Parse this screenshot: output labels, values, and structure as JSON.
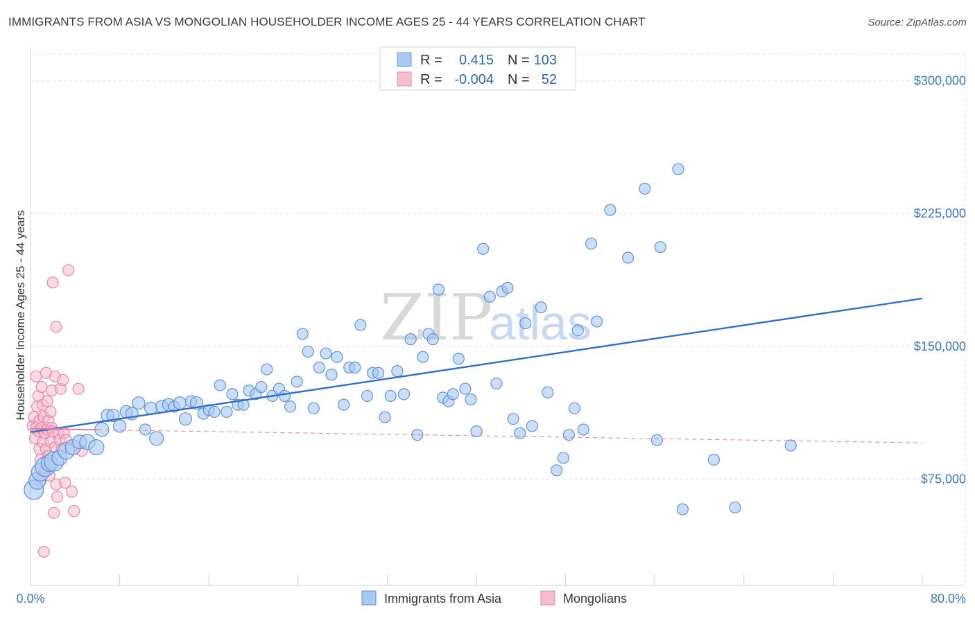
{
  "header": {
    "title": "IMMIGRANTS FROM ASIA VS MONGOLIAN HOUSEHOLDER INCOME AGES 25 - 44 YEARS CORRELATION CHART",
    "source": "Source: ZipAtlas.com"
  },
  "watermark": {
    "zip": "ZIP",
    "atlas": "atlas"
  },
  "legend": {
    "rows": [
      {
        "r_label": "R =",
        "r_value": "0.415",
        "n_label": "N =",
        "n_value": "103",
        "color": "#a9c8f2",
        "stroke": "#6d9fe0"
      },
      {
        "r_label": "R =",
        "r_value": "-0.004",
        "n_label": "N =",
        "n_value": "52",
        "color": "#f6bcd0",
        "stroke": "#e98aaa"
      }
    ]
  },
  "colors": {
    "asia_fill": "#a9c8f2",
    "asia_stroke": "#5f92d8",
    "asia_line": "#2f6fcf",
    "mongol_fill": "#f6bcd0",
    "mongol_stroke": "#e886a8",
    "mongol_line": "#e87aa0",
    "grid": "#e2e2e2",
    "axis_text": "#3f77c4"
  },
  "chart_data": {
    "type": "scatter",
    "title": "IMMIGRANTS FROM ASIA VS MONGOLIAN HOUSEHOLDER INCOME AGES 25 - 44 YEARS CORRELATION CHART",
    "xlabel": "",
    "ylabel": "Householder Income Ages 25 - 44 years",
    "xlim": [
      0,
      80
    ],
    "ylim": [
      15000,
      315000
    ],
    "x_tick_labels": [
      "0.0%",
      "80.0%"
    ],
    "y_ticks": [
      75000,
      150000,
      225000,
      300000
    ],
    "y_tick_labels": [
      "$75,000",
      "$150,000",
      "$225,000",
      "$300,000"
    ],
    "grid": true,
    "legend_position": "bottom-center",
    "series": [
      {
        "name": "Immigrants from Asia",
        "R": 0.415,
        "N": 103,
        "trend": [
          [
            0,
            101500
          ],
          [
            80,
            177000
          ]
        ],
        "points": [
          [
            0.3,
            69000,
            14
          ],
          [
            0.6,
            74000,
            12
          ],
          [
            0.9,
            79000,
            13
          ],
          [
            1.3,
            82000,
            14
          ],
          [
            1.7,
            84000,
            12
          ],
          [
            2.1,
            85000,
            14
          ],
          [
            2.6,
            87000,
            11
          ],
          [
            3.2,
            91000,
            12
          ],
          [
            3.8,
            93000,
            11
          ],
          [
            4.4,
            96000,
            10
          ],
          [
            5.1,
            96000,
            11
          ],
          [
            5.9,
            93000,
            11
          ],
          [
            6.4,
            103000,
            10
          ],
          [
            6.9,
            111000,
            9
          ],
          [
            7.4,
            111000,
            9
          ],
          [
            8.0,
            105000,
            9
          ],
          [
            8.6,
            113000,
            9
          ],
          [
            9.1,
            112000,
            9
          ],
          [
            9.7,
            118000,
            9
          ],
          [
            10.3,
            103000,
            8
          ],
          [
            10.8,
            115000,
            9
          ],
          [
            11.3,
            98000,
            10
          ],
          [
            11.8,
            116000,
            9
          ],
          [
            12.4,
            117000,
            9
          ],
          [
            12.9,
            116000,
            8
          ],
          [
            13.4,
            118000,
            9
          ],
          [
            13.9,
            109000,
            9
          ],
          [
            14.4,
            119000,
            8
          ],
          [
            14.9,
            118000,
            9
          ],
          [
            15.5,
            112000,
            8
          ],
          [
            16.0,
            114000,
            8
          ],
          [
            16.5,
            113000,
            8
          ],
          [
            17.0,
            128000,
            8
          ],
          [
            17.6,
            113000,
            8
          ],
          [
            18.1,
            123000,
            8
          ],
          [
            18.6,
            117000,
            8
          ],
          [
            19.1,
            117000,
            8
          ],
          [
            19.6,
            125000,
            8
          ],
          [
            20.2,
            123000,
            8
          ],
          [
            20.7,
            127000,
            8
          ],
          [
            21.2,
            137000,
            8
          ],
          [
            21.7,
            122000,
            8
          ],
          [
            22.3,
            126000,
            8
          ],
          [
            22.8,
            122000,
            8
          ],
          [
            23.3,
            116000,
            8
          ],
          [
            23.9,
            130000,
            8
          ],
          [
            24.4,
            157000,
            8
          ],
          [
            24.9,
            147000,
            8
          ],
          [
            25.4,
            115000,
            8
          ],
          [
            25.9,
            138000,
            8
          ],
          [
            26.5,
            146000,
            8
          ],
          [
            27.0,
            134000,
            8
          ],
          [
            27.5,
            144000,
            8
          ],
          [
            28.1,
            117000,
            8
          ],
          [
            28.6,
            138000,
            8
          ],
          [
            29.1,
            138000,
            8
          ],
          [
            29.6,
            162000,
            8
          ],
          [
            30.2,
            122000,
            8
          ],
          [
            30.7,
            135000,
            8
          ],
          [
            31.2,
            135000,
            8
          ],
          [
            31.8,
            110000,
            8
          ],
          [
            32.3,
            122000,
            8
          ],
          [
            32.9,
            136000,
            8
          ],
          [
            33.5,
            123000,
            8
          ],
          [
            34.1,
            154000,
            8
          ],
          [
            34.7,
            100000,
            8
          ],
          [
            35.2,
            144000,
            8
          ],
          [
            35.7,
            157000,
            8
          ],
          [
            36.1,
            154000,
            8
          ],
          [
            36.6,
            182000,
            8
          ],
          [
            37.0,
            121000,
            8
          ],
          [
            37.5,
            119000,
            8
          ],
          [
            37.9,
            123000,
            8
          ],
          [
            38.4,
            143000,
            8
          ],
          [
            39.0,
            126000,
            8
          ],
          [
            39.5,
            120000,
            8
          ],
          [
            40.0,
            102000,
            8
          ],
          [
            40.6,
            205000,
            8
          ],
          [
            41.2,
            178000,
            8
          ],
          [
            41.8,
            129000,
            8
          ],
          [
            42.3,
            181000,
            8
          ],
          [
            42.8,
            183000,
            8
          ],
          [
            43.3,
            109000,
            8
          ],
          [
            43.9,
            101000,
            8
          ],
          [
            44.4,
            163000,
            8
          ],
          [
            45.0,
            105000,
            8
          ],
          [
            45.8,
            172000,
            8
          ],
          [
            46.4,
            124000,
            8
          ],
          [
            47.2,
            80000,
            8
          ],
          [
            47.8,
            87000,
            8
          ],
          [
            48.3,
            100000,
            8
          ],
          [
            48.8,
            115000,
            8
          ],
          [
            49.1,
            159000,
            8
          ],
          [
            49.6,
            103000,
            8
          ],
          [
            50.3,
            208000,
            8
          ],
          [
            50.8,
            164000,
            8
          ],
          [
            52.0,
            227000,
            8
          ],
          [
            53.6,
            200000,
            8
          ],
          [
            55.1,
            239000,
            8
          ],
          [
            56.2,
            97000,
            8
          ],
          [
            56.5,
            206000,
            8
          ],
          [
            58.1,
            250000,
            8
          ],
          [
            58.5,
            58000,
            8
          ],
          [
            61.3,
            86000,
            8
          ],
          [
            63.2,
            59000,
            8
          ],
          [
            68.2,
            94000,
            8
          ]
        ]
      },
      {
        "name": "Mongolians",
        "R": -0.004,
        "N": 52,
        "trend": [
          [
            0,
            103500
          ],
          [
            80,
            95500
          ]
        ],
        "points": [
          [
            0.2,
            105000,
            8
          ],
          [
            0.3,
            110000,
            8
          ],
          [
            0.4,
            98000,
            8
          ],
          [
            0.5,
            104000,
            8
          ],
          [
            0.5,
            133000,
            8
          ],
          [
            0.6,
            116000,
            8
          ],
          [
            0.7,
            102000,
            8
          ],
          [
            0.7,
            122000,
            8
          ],
          [
            0.8,
            92000,
            8
          ],
          [
            0.8,
            108000,
            8
          ],
          [
            0.9,
            74000,
            8
          ],
          [
            0.9,
            86000,
            8
          ],
          [
            1.0,
            104000,
            8
          ],
          [
            1.0,
            127000,
            8
          ],
          [
            1.1,
            96000,
            8
          ],
          [
            1.1,
            117000,
            8
          ],
          [
            1.2,
            110000,
            8
          ],
          [
            1.2,
            34000,
            8
          ],
          [
            1.3,
            80000,
            8
          ],
          [
            1.3,
            101000,
            8
          ],
          [
            1.4,
            92000,
            8
          ],
          [
            1.4,
            135000,
            8
          ],
          [
            1.5,
            103000,
            8
          ],
          [
            1.5,
            119000,
            8
          ],
          [
            1.6,
            88000,
            8
          ],
          [
            1.6,
            108000,
            8
          ],
          [
            1.7,
            77000,
            8
          ],
          [
            1.8,
            113000,
            8
          ],
          [
            1.8,
            96000,
            8
          ],
          [
            1.9,
            104000,
            8
          ],
          [
            1.9,
            125000,
            8
          ],
          [
            2.0,
            102000,
            8
          ],
          [
            2.0,
            186000,
            8
          ],
          [
            2.1,
            56000,
            8
          ],
          [
            2.2,
            93000,
            8
          ],
          [
            2.2,
            133000,
            8
          ],
          [
            2.3,
            72000,
            8
          ],
          [
            2.3,
            161000,
            8
          ],
          [
            2.4,
            65000,
            8
          ],
          [
            2.5,
            101000,
            8
          ],
          [
            2.6,
            97000,
            8
          ],
          [
            2.7,
            126000,
            8
          ],
          [
            2.8,
            92000,
            8
          ],
          [
            2.9,
            131000,
            8
          ],
          [
            3.0,
            101000,
            8
          ],
          [
            3.1,
            73000,
            8
          ],
          [
            3.2,
            97000,
            8
          ],
          [
            3.4,
            193000,
            8
          ],
          [
            3.7,
            68000,
            8
          ],
          [
            3.9,
            57000,
            8
          ],
          [
            4.3,
            126000,
            8
          ],
          [
            4.6,
            91000,
            8
          ]
        ]
      }
    ]
  },
  "bottom_legend": {
    "items": [
      {
        "label": "Immigrants from Asia"
      },
      {
        "label": "Mongolians"
      }
    ]
  }
}
